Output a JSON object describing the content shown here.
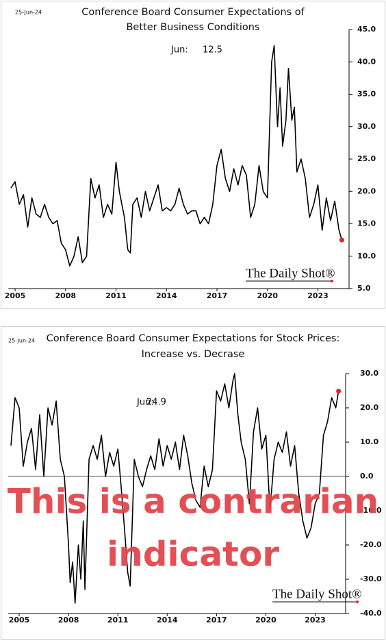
{
  "chart_data": [
    {
      "type": "line",
      "date": "25-Jun-24",
      "title": [
        "Conference Board Consumer Expectations of",
        "Better Business Conditions"
      ],
      "annotation": "Jun:",
      "source": "The Daily Shot®",
      "xlim": [
        2004.6,
        2024.85
      ],
      "xticks": [
        2005,
        2008,
        2011,
        2014,
        2017,
        2020,
        2023
      ],
      "ylim": [
        5,
        45
      ],
      "yticks": [
        {
          "value": 5,
          "label": "5.0"
        },
        {
          "value": 10,
          "label": "10.0"
        },
        {
          "value": 15,
          "label": "15.0"
        },
        {
          "value": 20,
          "label": "20.0"
        },
        {
          "value": 25,
          "label": "25.0"
        },
        {
          "value": 30,
          "label": "30.0"
        },
        {
          "value": 35,
          "label": "35.0"
        },
        {
          "value": 40,
          "label": "40.0"
        },
        {
          "value": 45,
          "label": "45.0"
        }
      ],
      "series": [
        {
          "color": "#000000",
          "marker_color": "#e8202a",
          "x": [
            2004.75,
            2005.0,
            2005.25,
            2005.5,
            2005.75,
            2006.0,
            2006.25,
            2006.5,
            2006.75,
            2007.0,
            2007.25,
            2007.5,
            2007.75,
            2008.0,
            2008.25,
            2008.5,
            2008.75,
            2009.0,
            2009.25,
            2009.5,
            2009.75,
            2010.0,
            2010.25,
            2010.5,
            2010.75,
            2011.0,
            2011.2,
            2011.5,
            2011.7,
            2011.85,
            2012.0,
            2012.25,
            2012.5,
            2012.75,
            2013.0,
            2013.25,
            2013.5,
            2013.75,
            2014.0,
            2014.25,
            2014.5,
            2014.75,
            2015.0,
            2015.25,
            2015.5,
            2015.75,
            2016.0,
            2016.25,
            2016.5,
            2016.75,
            2017.0,
            2017.25,
            2017.5,
            2017.75,
            2018.0,
            2018.25,
            2018.5,
            2018.75,
            2019.0,
            2019.25,
            2019.5,
            2019.75,
            2020.0,
            2020.25,
            2020.4,
            2020.6,
            2020.75,
            2020.9,
            2021.1,
            2021.25,
            2021.45,
            2021.6,
            2021.75,
            2022.0,
            2022.25,
            2022.5,
            2022.75,
            2023.0,
            2023.25,
            2023.5,
            2023.75,
            2024.0,
            2024.25,
            2024.42
          ],
          "values": [
            20.5,
            21.5,
            18,
            19.5,
            14.5,
            19,
            16.5,
            16,
            18,
            16,
            15,
            15.5,
            12,
            11,
            8.5,
            10,
            13,
            9,
            10,
            22,
            19,
            21,
            16,
            18,
            16.5,
            24.5,
            20,
            16,
            11,
            10.5,
            18,
            19,
            16,
            20,
            17,
            19,
            21,
            17,
            17.5,
            17,
            18,
            20.5,
            18,
            16.5,
            17,
            17,
            15,
            16,
            15,
            18,
            24,
            26.5,
            22,
            20,
            23.5,
            21,
            24,
            22.5,
            16,
            18,
            24,
            20,
            19,
            40,
            42.5,
            30,
            36,
            27,
            31,
            39,
            31,
            33,
            23,
            25,
            22,
            16,
            18,
            21,
            14,
            19,
            15.5,
            18.5,
            14,
            12.5
          ]
        }
      ]
    },
    {
      "type": "line",
      "date": "25-Jun-24",
      "title": [
        "Conference Board Consumer Expectations for Stock Prices:",
        "Increase vs. Decrase"
      ],
      "annotation": "Jun:",
      "source": "The Daily Shot®",
      "overlay_text": [
        "This is a contrarian",
        "indicator"
      ],
      "xlim": [
        2004.33,
        2024.85
      ],
      "xticks": [
        2005,
        2008,
        2011,
        2014,
        2017,
        2020,
        2023
      ],
      "ylim": [
        -40,
        30
      ],
      "yticks": [
        {
          "value": -40,
          "label": "-40.0"
        },
        {
          "value": -30,
          "label": "-30.0"
        },
        {
          "value": -20,
          "label": "-20.0"
        },
        {
          "value": -10,
          "label": "-10.0"
        },
        {
          "value": 0,
          "label": "0.0"
        },
        {
          "value": 10,
          "label": "10.0"
        },
        {
          "value": 20,
          "label": "20.0"
        },
        {
          "value": 30,
          "label": "30.0"
        }
      ],
      "zero_line": true,
      "series": [
        {
          "color": "#000000",
          "marker_color": "#e8202a",
          "x": [
            2004.5,
            2004.75,
            2005.0,
            2005.25,
            2005.5,
            2005.75,
            2006.0,
            2006.25,
            2006.5,
            2006.75,
            2007.0,
            2007.25,
            2007.5,
            2007.75,
            2008.0,
            2008.1,
            2008.25,
            2008.4,
            2008.6,
            2008.75,
            2008.9,
            2009.0,
            2009.25,
            2009.5,
            2009.75,
            2010.0,
            2010.25,
            2010.5,
            2010.75,
            2011.0,
            2011.2,
            2011.4,
            2011.6,
            2011.75,
            2011.9,
            2012.0,
            2012.25,
            2012.5,
            2012.75,
            2013.0,
            2013.25,
            2013.5,
            2013.75,
            2014.0,
            2014.25,
            2014.5,
            2014.75,
            2015.0,
            2015.25,
            2015.5,
            2015.75,
            2016.0,
            2016.25,
            2016.5,
            2016.75,
            2017.0,
            2017.25,
            2017.5,
            2017.75,
            2018.0,
            2018.1,
            2018.3,
            2018.5,
            2018.75,
            2019.0,
            2019.25,
            2019.5,
            2019.75,
            2020.0,
            2020.25,
            2020.5,
            2020.75,
            2021.0,
            2021.25,
            2021.5,
            2021.75,
            2022.0,
            2022.25,
            2022.5,
            2022.75,
            2023.0,
            2023.25,
            2023.5,
            2023.75,
            2024.0,
            2024.25,
            2024.42
          ],
          "values": [
            9,
            23,
            20,
            3,
            10,
            14,
            2,
            18,
            0,
            20,
            15,
            22,
            5,
            0,
            -20,
            -31,
            -25,
            -37,
            -20,
            -30,
            -13,
            -33,
            5,
            9,
            5,
            12,
            0,
            7,
            3,
            8,
            -3,
            -15,
            -28,
            -32,
            -10,
            5,
            0,
            -3,
            2,
            6,
            2,
            11,
            3,
            9,
            5,
            10,
            2,
            12,
            6,
            -2,
            -7,
            -9,
            3,
            -3,
            2,
            25,
            22,
            27,
            20,
            28,
            30,
            18,
            10,
            5,
            -8,
            13,
            20,
            8,
            12,
            -10,
            5,
            10,
            7,
            13,
            3,
            9,
            -5,
            -13,
            -18,
            -15,
            -8,
            -5,
            12,
            16,
            23,
            20,
            24.9
          ]
        }
      ]
    }
  ]
}
